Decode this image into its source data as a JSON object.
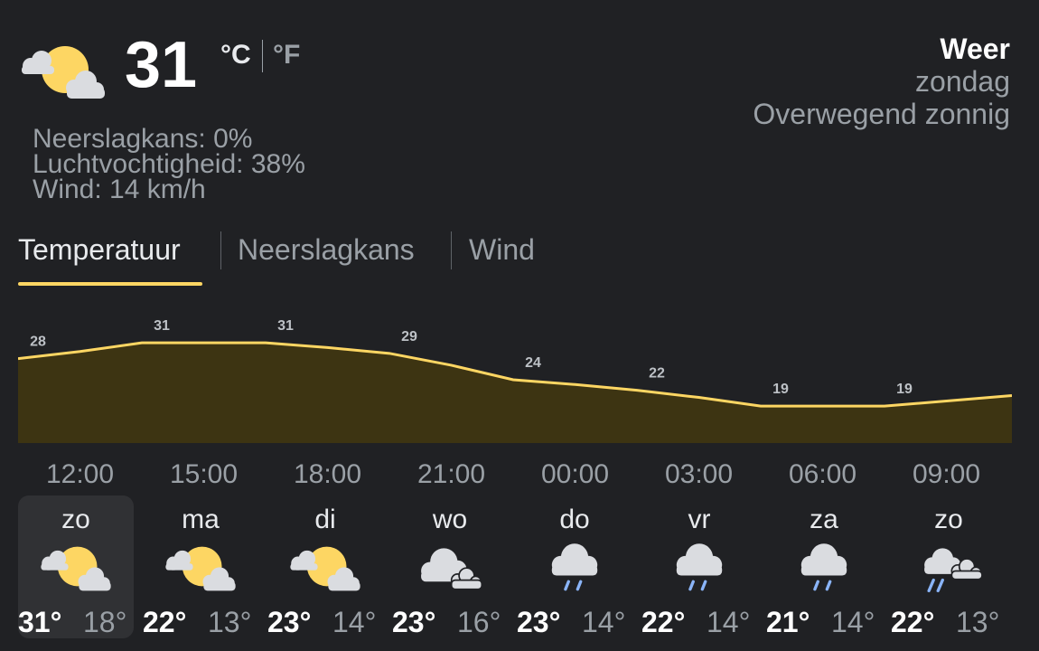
{
  "current": {
    "temperature": "31",
    "unit_c": "°C",
    "unit_f": "°F",
    "icon": "partly-cloudy-icon",
    "details": {
      "precip": "Neerslagkans: 0%",
      "humidity": "Luchtvochtigheid: 38%",
      "wind": "Wind: 14 km/h"
    }
  },
  "header": {
    "title": "Weer",
    "day": "zondag",
    "condition": "Overwegend zonnig"
  },
  "tabs": [
    {
      "label": "Temperatuur",
      "active": true
    },
    {
      "label": "Neerslagkans",
      "active": false
    },
    {
      "label": "Wind",
      "active": false
    }
  ],
  "colors": {
    "accent": "#fdd663",
    "fill": "#3d3412",
    "background": "#202124"
  },
  "chart_data": {
    "type": "area",
    "x": [
      "12:00",
      "15:00",
      "18:00",
      "21:00",
      "00:00",
      "03:00",
      "06:00",
      "09:00"
    ],
    "values": [
      28,
      31,
      31,
      29,
      24,
      22,
      19,
      19
    ],
    "labels": [
      "28",
      "31",
      "31",
      "29",
      "24",
      "22",
      "19",
      "19"
    ],
    "title": "",
    "xlabel": "",
    "ylabel": ""
  },
  "days": [
    {
      "name": "zo",
      "hi": "31°",
      "lo": "18°",
      "icon": "partly-cloudy-icon",
      "selected": true
    },
    {
      "name": "ma",
      "hi": "22°",
      "lo": "13°",
      "icon": "partly-cloudy-icon",
      "selected": false
    },
    {
      "name": "di",
      "hi": "23°",
      "lo": "14°",
      "icon": "partly-cloudy-icon",
      "selected": false
    },
    {
      "name": "wo",
      "hi": "23°",
      "lo": "16°",
      "icon": "cloudy-icon",
      "selected": false
    },
    {
      "name": "do",
      "hi": "23°",
      "lo": "14°",
      "icon": "rain-icon",
      "selected": false
    },
    {
      "name": "vr",
      "hi": "22°",
      "lo": "14°",
      "icon": "rain-icon",
      "selected": false
    },
    {
      "name": "za",
      "hi": "21°",
      "lo": "14°",
      "icon": "rain-icon",
      "selected": false
    },
    {
      "name": "zo",
      "hi": "22°",
      "lo": "13°",
      "icon": "showers-icon",
      "selected": false
    }
  ]
}
